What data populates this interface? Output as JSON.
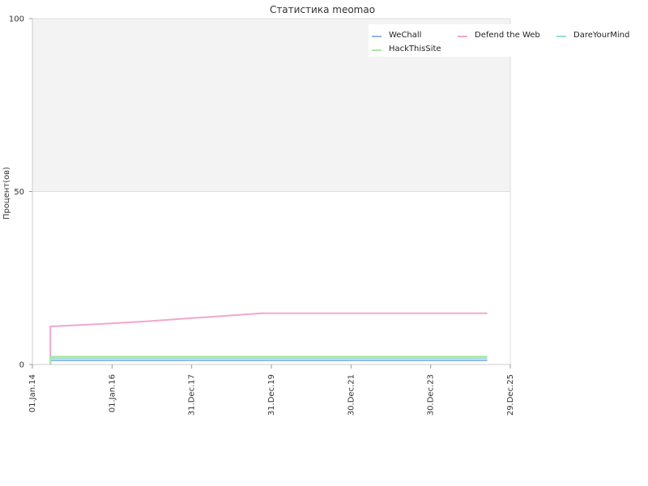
{
  "chart_data": {
    "type": "line",
    "title": "Статистика meomao",
    "xlabel": "",
    "ylabel": "Процент(ов)",
    "ylim": [
      0,
      100
    ],
    "y_ticks": [
      0,
      50,
      100
    ],
    "x_axis": {
      "range": [
        "2014-01-01",
        "2025-12-29"
      ],
      "tick_labels": [
        "01.Jan.14",
        "01.Jan.16",
        "31.Dec.17",
        "31.Dec.19",
        "30.Dec.21",
        "30.Dec.23",
        "29.Dec.25"
      ],
      "tick_dates": [
        "2014-01-01",
        "2016-01-01",
        "2017-12-31",
        "2019-12-31",
        "2021-12-30",
        "2023-12-30",
        "2025-12-29"
      ]
    },
    "background_band": {
      "from": 50,
      "to": 100,
      "color": "#f3f3f3"
    },
    "grid": true,
    "legend": {
      "placement": "top-right",
      "columns": 3
    },
    "series": [
      {
        "name": "WeChall",
        "color": "#8fb8e6",
        "points": [
          [
            "2014-06-15",
            0
          ],
          [
            "2014-06-15",
            1.2
          ],
          [
            "2025-06-01",
            1.2
          ]
        ]
      },
      {
        "name": "Defend the Web",
        "color": "#f2a6cf",
        "points": [
          [
            "2014-06-15",
            0
          ],
          [
            "2014-06-15",
            11
          ],
          [
            "2015-01-01",
            11.3
          ],
          [
            "2016-01-01",
            11.9
          ],
          [
            "2017-01-01",
            12.6
          ],
          [
            "2018-01-01",
            13.4
          ],
          [
            "2019-01-01",
            14.2
          ],
          [
            "2019-10-01",
            14.8
          ],
          [
            "2025-06-01",
            14.8
          ]
        ]
      },
      {
        "name": "DareYourMind",
        "color": "#9adbe0",
        "points": [
          [
            "2014-06-15",
            0
          ],
          [
            "2014-06-15",
            1.8
          ],
          [
            "2025-06-01",
            1.8
          ]
        ]
      },
      {
        "name": "HackThisSite",
        "color": "#a8eaa0",
        "points": [
          [
            "2014-06-15",
            0
          ],
          [
            "2014-06-15",
            2.3
          ],
          [
            "2025-06-01",
            2.3
          ]
        ]
      }
    ]
  }
}
